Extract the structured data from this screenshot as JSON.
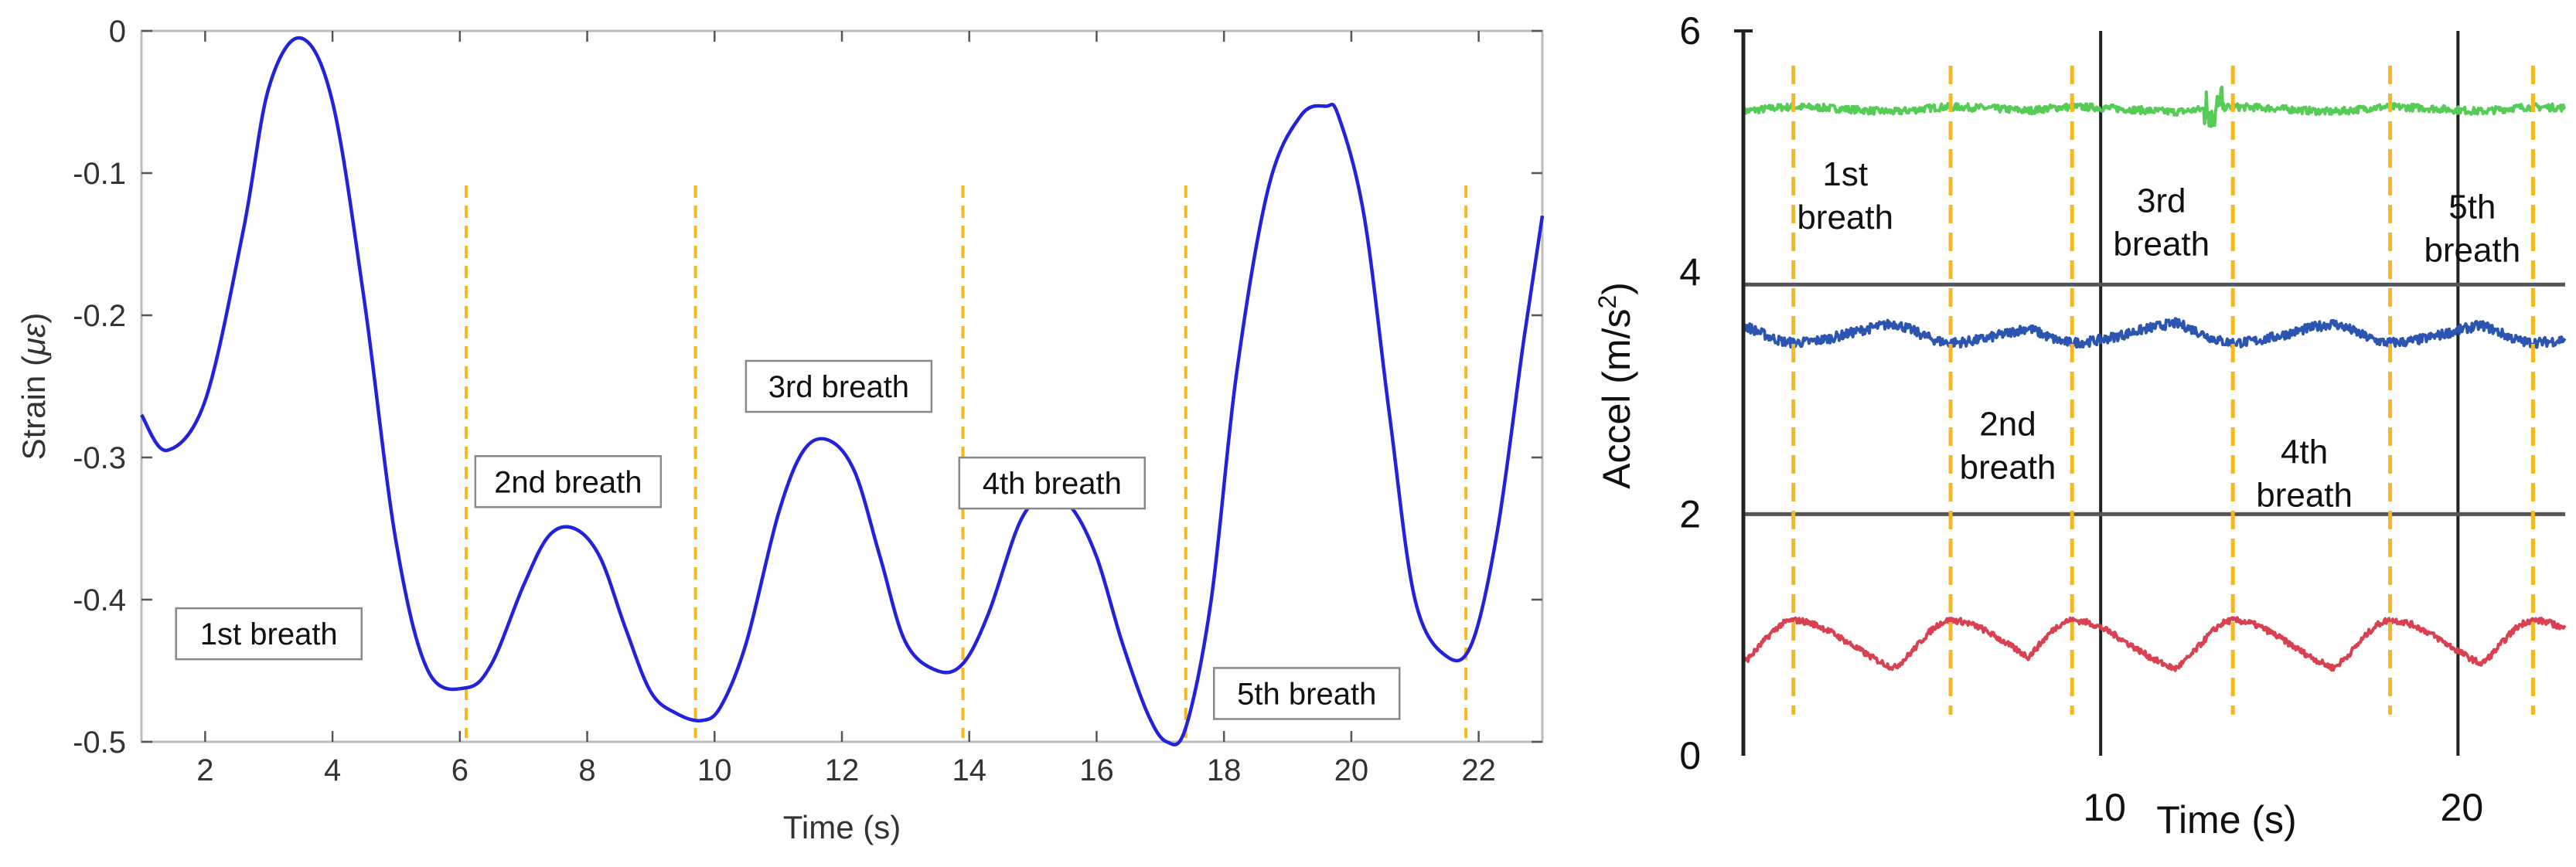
{
  "chart_data": [
    {
      "type": "line",
      "title": "",
      "xlabel": "Time (s)",
      "ylabel_text": "Strain (",
      "ylabel_unit": "με",
      "ylabel_close": ")",
      "xlim": [
        1,
        23
      ],
      "ylim": [
        -0.5,
        0
      ],
      "xticks": [
        2,
        4,
        6,
        8,
        10,
        12,
        14,
        16,
        18,
        20,
        22
      ],
      "yticks": [
        0,
        -0.1,
        -0.2,
        -0.3,
        -0.4,
        -0.5
      ],
      "ytick_labels": [
        "0",
        "-0.1",
        "-0.2",
        "-0.3",
        "-0.4",
        "-0.5"
      ],
      "grid": false,
      "line_color": "#2222dd",
      "marker_color": "#f5b820",
      "series": [
        {
          "x": [
            1.0,
            1.4,
            2.0,
            2.6,
            3.0,
            3.5,
            4.0,
            4.5,
            5.0,
            5.5,
            6.1,
            6.5,
            7.0,
            7.4,
            7.8,
            8.2,
            8.6,
            9.0,
            9.4,
            9.8,
            10.1,
            10.5,
            11.0,
            11.4,
            11.8,
            12.2,
            12.6,
            13.0,
            13.5,
            13.9,
            14.3,
            14.8,
            15.2,
            15.6,
            16.0,
            16.4,
            16.8,
            17.1,
            17.4,
            17.8,
            18.2,
            18.7,
            19.2,
            19.6,
            19.8,
            20.2,
            20.6,
            21.0,
            21.5,
            21.9,
            22.3,
            22.7,
            23.0
          ],
          "y": [
            -0.27,
            -0.295,
            -0.26,
            -0.14,
            -0.04,
            -0.005,
            -0.05,
            -0.19,
            -0.36,
            -0.45,
            -0.462,
            -0.445,
            -0.39,
            -0.355,
            -0.35,
            -0.37,
            -0.42,
            -0.465,
            -0.48,
            -0.485,
            -0.475,
            -0.43,
            -0.34,
            -0.295,
            -0.288,
            -0.31,
            -0.37,
            -0.43,
            -0.45,
            -0.445,
            -0.41,
            -0.345,
            -0.327,
            -0.335,
            -0.37,
            -0.43,
            -0.48,
            -0.5,
            -0.49,
            -0.4,
            -0.24,
            -0.11,
            -0.06,
            -0.053,
            -0.06,
            -0.13,
            -0.27,
            -0.4,
            -0.44,
            -0.43,
            -0.35,
            -0.22,
            -0.13
          ]
        }
      ],
      "breath_markers": [
        6.1,
        9.7,
        13.9,
        17.4,
        21.8
      ],
      "annotations": [
        {
          "text": "1st breath",
          "x": 3.0,
          "y": -0.424
        },
        {
          "text": "2nd breath",
          "x": 7.7,
          "y": -0.317
        },
        {
          "text": "3rd breath",
          "x": 11.95,
          "y": -0.25
        },
        {
          "text": "4th breath",
          "x": 15.3,
          "y": -0.318
        },
        {
          "text": "5th breath",
          "x": 19.3,
          "y": -0.466
        }
      ]
    },
    {
      "type": "line",
      "title": "",
      "xlabel": "Time (s)",
      "ylabel_text": "Accel (m/s",
      "ylabel_sup": "2",
      "ylabel_close": ")",
      "xlim": [
        0,
        23
      ],
      "ylim": [
        0,
        6
      ],
      "xticks": [
        10,
        20
      ],
      "yticks": [
        0,
        2,
        4,
        6
      ],
      "gridlines_x": [
        10,
        20
      ],
      "gridlines_y": [
        2,
        3.9
      ],
      "grid": true,
      "breath_markers": [
        1.4,
        5.8,
        9.2,
        13.7,
        18.1,
        22.1
      ],
      "marker_color": "#f5b820",
      "series": [
        {
          "color": "#55cc55",
          "baseline": 5.32,
          "amplitude": 0.05,
          "dip_direction": 1
        },
        {
          "color": "#2b55b0",
          "baseline": 3.62,
          "amplitude": 0.2,
          "dip_direction": -1
        },
        {
          "color": "#d94050",
          "baseline": 0.62,
          "amplitude": 0.5,
          "dip_direction": 1
        }
      ],
      "annotations": [
        {
          "lines": [
            "1st",
            "breath"
          ],
          "x": 2.85,
          "y": 4.72
        },
        {
          "lines": [
            "3rd",
            "breath"
          ],
          "x": 11.7,
          "y": 4.5
        },
        {
          "lines": [
            "5th",
            "breath"
          ],
          "x": 20.4,
          "y": 4.45
        },
        {
          "lines": [
            "2nd",
            "breath"
          ],
          "x": 7.4,
          "y": 2.65
        },
        {
          "lines": [
            "4th",
            "breath"
          ],
          "x": 15.7,
          "y": 2.42
        }
      ]
    }
  ]
}
